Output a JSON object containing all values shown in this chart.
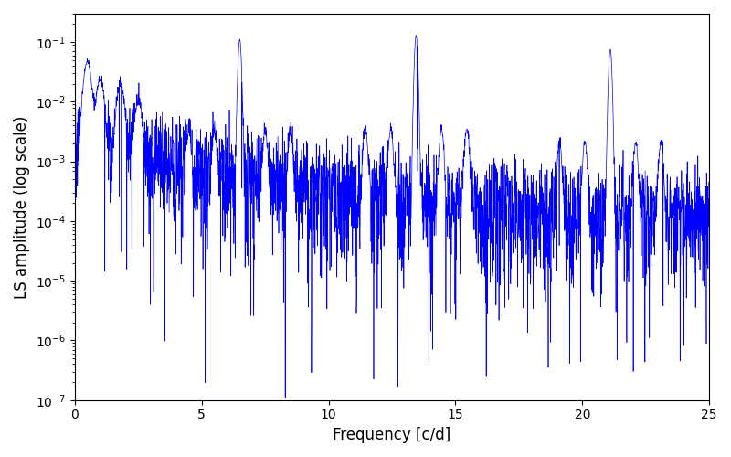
{
  "title": "",
  "xlabel": "Frequency [c/d]",
  "ylabel": "LS amplitude (log scale)",
  "line_color": "#0000FF",
  "xlim": [
    0,
    25
  ],
  "ylim_low": 1e-07,
  "ylim_high": 0.3,
  "freq_max": 25,
  "n_points": 3000,
  "peak_freqs": [
    6.5,
    13.45,
    21.1
  ],
  "peak_amps": [
    0.11,
    0.13,
    0.075
  ],
  "low_freq_peaks": [
    0.5,
    1.0,
    1.8,
    2.5
  ],
  "low_freq_amps": [
    0.045,
    0.022,
    0.018,
    0.009
  ],
  "seed": 7,
  "background_color": "#ffffff",
  "figsize": [
    8.0,
    5.0
  ],
  "dpi": 100
}
